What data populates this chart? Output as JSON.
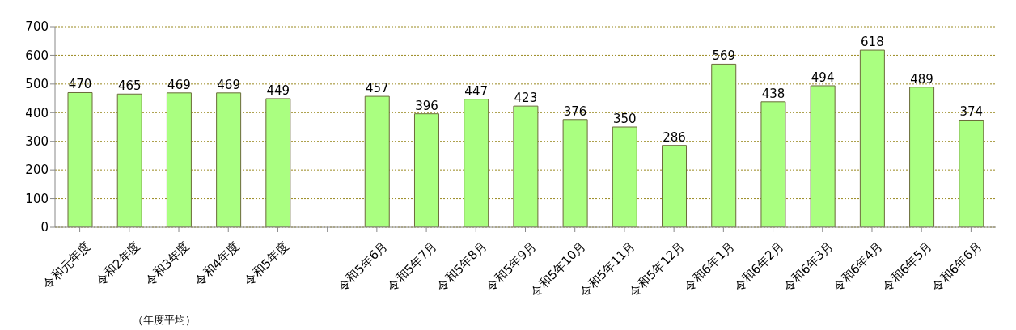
{
  "chart_data": {
    "type": "bar",
    "categories": [
      "令和元年度",
      "令和2年度",
      "令和3年度",
      "令和4年度",
      "令和5年度",
      null,
      "令和5年6月",
      "令和5年7月",
      "令和5年8月",
      "令和5年9月",
      "令和5年10月",
      "令和5年11月",
      "令和5年12月",
      "令和6年1月",
      "令和6年2月",
      "令和6年3月",
      "令和6年4月",
      "令和6年5月",
      "令和6年6月"
    ],
    "values": [
      470,
      465,
      469,
      469,
      449,
      null,
      457,
      396,
      447,
      423,
      376,
      350,
      286,
      569,
      438,
      494,
      618,
      489,
      374
    ],
    "color": "#aaff80",
    "ylim": [
      0,
      700
    ],
    "yticks": [
      0,
      100,
      200,
      300,
      400,
      500,
      600,
      700
    ],
    "grid": "y",
    "data_labels": true,
    "annotations": [
      "（年度平均）"
    ]
  }
}
